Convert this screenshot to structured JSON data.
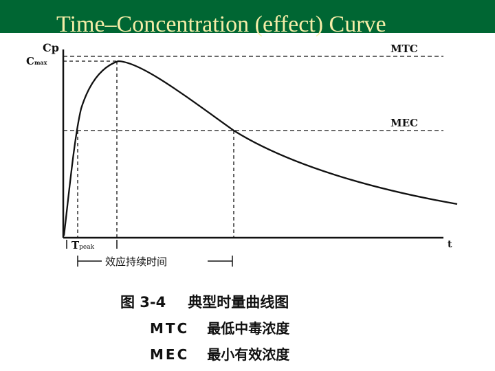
{
  "slide": {
    "title": "Time–Concentration (effect) Curve",
    "title_color": "#f5eda8",
    "header_color": "#006633"
  },
  "figure": {
    "y_axis_label": "Cp",
    "cmax_label_main": "C",
    "cmax_label_sub": "max",
    "x_axis_label": "t",
    "tpeak_label_main": "T",
    "tpeak_label_sub": "peak",
    "mtc_label": "MTC",
    "mec_label": "MEC",
    "duration_label": "效应持续时间",
    "caption_number": "图 3-4",
    "caption_title": "典型时量曲线图",
    "legend": [
      {
        "abbr": "MTC",
        "meaning": "最低中毒浓度"
      },
      {
        "abbr": "MEC",
        "meaning": "最小有效浓度"
      }
    ]
  }
}
